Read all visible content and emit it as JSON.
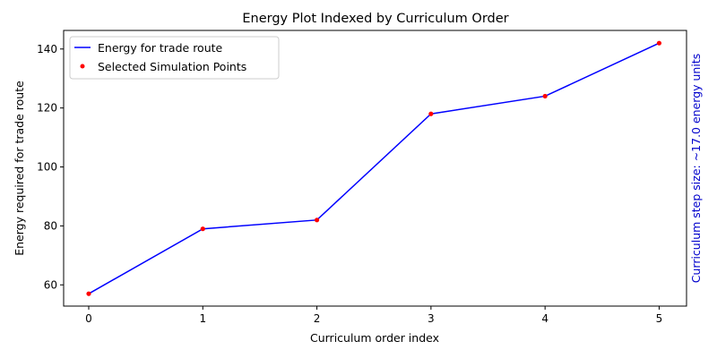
{
  "chart_data": {
    "type": "line",
    "title": "Energy Plot Indexed by Curriculum Order",
    "xlabel": "Curriculum order index",
    "ylabel": "Energy required for trade route",
    "right_label": "Curriculum step size: ~17.0 energy units",
    "x": [
      0,
      1,
      2,
      3,
      4,
      5
    ],
    "x_ticks": [
      "0",
      "1",
      "2",
      "3",
      "4",
      "5"
    ],
    "y_ticks": [
      "60",
      "80",
      "100",
      "120",
      "140"
    ],
    "xlim": [
      -0.22,
      5.24
    ],
    "ylim": [
      52.8,
      146.3
    ],
    "series": [
      {
        "name": "Energy for trade route",
        "kind": "line",
        "values": [
          57,
          79,
          82,
          118,
          124,
          142
        ]
      },
      {
        "name": "Selected Simulation Points",
        "kind": "scatter",
        "values": [
          57,
          79,
          82,
          118,
          124,
          142
        ]
      }
    ],
    "legend_position": "upper-left",
    "grid": false,
    "colors": {
      "line": "#0000ff",
      "points": "#ff0000",
      "right_label": "#0000cc",
      "axes": "#000000"
    }
  }
}
